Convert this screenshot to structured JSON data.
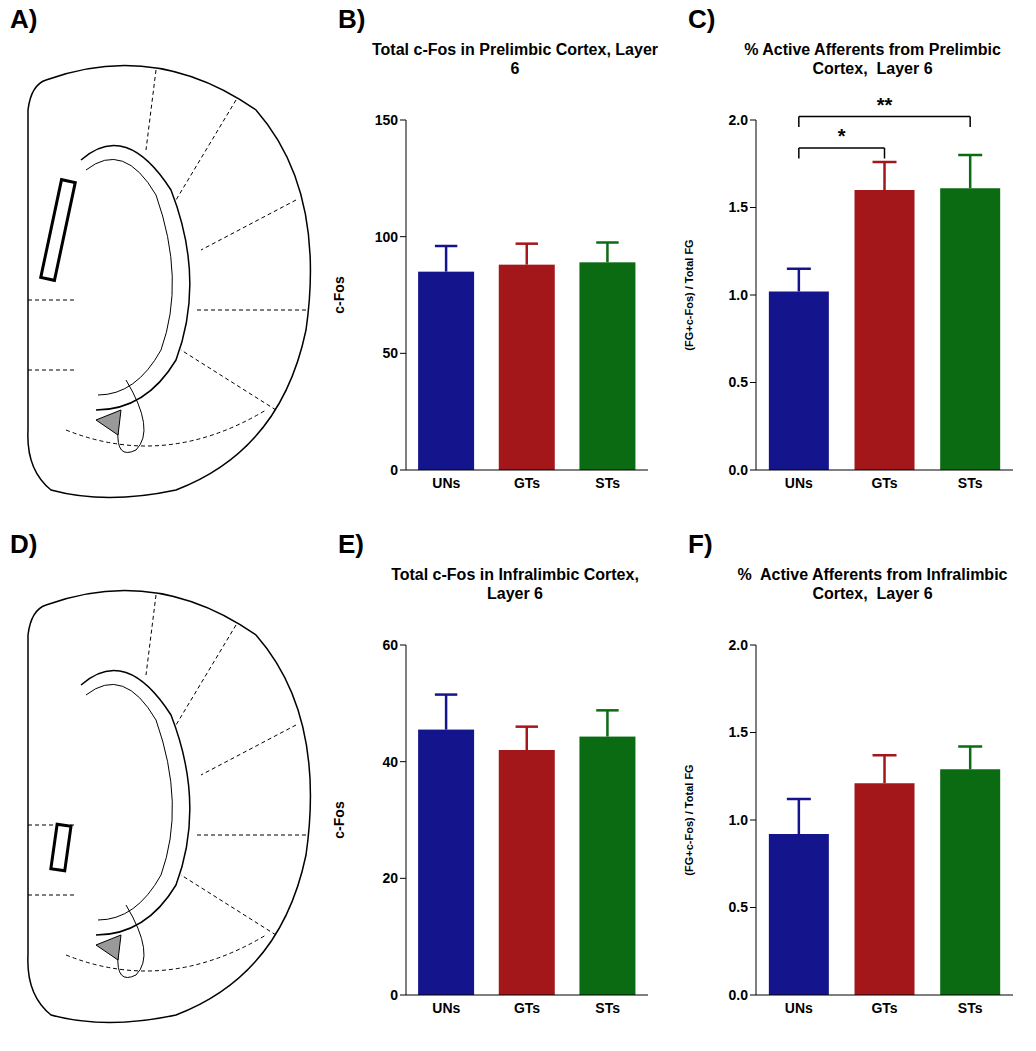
{
  "chart_data": [
    {
      "type": "bar",
      "panel": "B)",
      "title": "Total c-Fos in Prelimbic Cortex, Layer 6",
      "ylabel": "c-Fos",
      "categories": [
        "UNs",
        "GTs",
        "STs"
      ],
      "values": [
        85,
        88,
        89
      ],
      "errors": [
        11,
        9,
        8.5
      ],
      "colors": [
        "#14148c",
        "#a3161a",
        "#0b6b13"
      ],
      "ylim": [
        0,
        150
      ],
      "yticks": [
        0,
        50,
        100,
        150
      ]
    },
    {
      "type": "bar",
      "panel": "C)",
      "title": "% Active Afferents from Prelimbic Cortex,  Layer 6",
      "ylabel": "(FG+c-Fos) / Total FG",
      "categories": [
        "UNs",
        "GTs",
        "STs"
      ],
      "values": [
        1.02,
        1.6,
        1.61
      ],
      "errors": [
        0.13,
        0.16,
        0.19
      ],
      "colors": [
        "#14148c",
        "#a3161a",
        "#0b6b13"
      ],
      "ylim": [
        0,
        2
      ],
      "yticks": [
        {
          "value": 0,
          "label": "0.0"
        },
        {
          "value": 0.5,
          "label": "0.5"
        },
        {
          "value": 1,
          "label": "1.0"
        },
        {
          "value": 1.5,
          "label": "1.5"
        },
        {
          "value": 2,
          "label": "2.0"
        }
      ],
      "annotations": [
        {
          "from": "UNs",
          "to": "GTs",
          "label": "*"
        },
        {
          "from": "UNs",
          "to": "STs",
          "label": "**"
        }
      ]
    },
    {
      "type": "bar",
      "panel": "E)",
      "title": "Total c-Fos in Infralimbic Cortex, Layer 6",
      "ylabel": "c-Fos",
      "categories": [
        "UNs",
        "GTs",
        "STs"
      ],
      "values": [
        45.5,
        42,
        44.3
      ],
      "errors": [
        6,
        4,
        4.5
      ],
      "colors": [
        "#14148c",
        "#a3161a",
        "#0b6b13"
      ],
      "ylim": [
        0,
        60
      ],
      "yticks": [
        0,
        20,
        40,
        60
      ]
    },
    {
      "type": "bar",
      "panel": "F)",
      "title": "%  Active Afferents from Infralimbic Cortex,  Layer 6",
      "ylabel": "(FG+c-Fos) / Total FG",
      "categories": [
        "UNs",
        "GTs",
        "STs"
      ],
      "values": [
        0.92,
        1.21,
        1.29
      ],
      "errors": [
        0.2,
        0.16,
        0.13
      ],
      "colors": [
        "#14148c",
        "#a3161a",
        "#0b6b13"
      ],
      "ylim": [
        0,
        2
      ],
      "yticks": [
        {
          "value": 0,
          "label": "0.0"
        },
        {
          "value": 0.5,
          "label": "0.5"
        },
        {
          "value": 1,
          "label": "1.0"
        },
        {
          "value": 1.5,
          "label": "1.5"
        },
        {
          "value": 2,
          "label": "2.0"
        }
      ]
    }
  ],
  "diagrams": [
    {
      "panel": "A)"
    },
    {
      "panel": "D)"
    }
  ]
}
